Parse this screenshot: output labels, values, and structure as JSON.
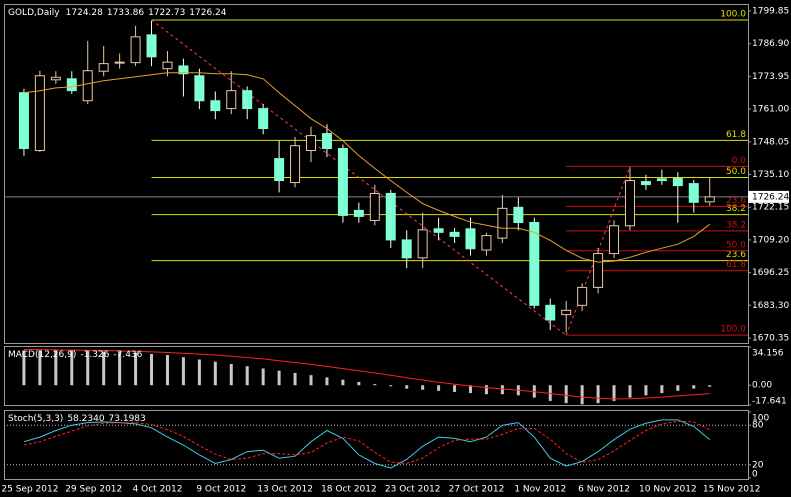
{
  "chart_data": [
    {
      "type": "candlestick",
      "symbol": "GOLD,Daily",
      "x": [
        0,
        1,
        2,
        3,
        4,
        5,
        6,
        7,
        8,
        9,
        10,
        11,
        12,
        13,
        14,
        15,
        16,
        17,
        18,
        19,
        20,
        21,
        22,
        23,
        24,
        25,
        26,
        27,
        28,
        29,
        30,
        31,
        32,
        33,
        34,
        35,
        36,
        37,
        38,
        39,
        40,
        41,
        42,
        43
      ],
      "open": [
        1767.5,
        1744.6,
        1772.6,
        1773,
        1764.3,
        1776,
        1779.2,
        1779.4,
        1790.4,
        1777,
        1778.1,
        1774.2,
        1764.3,
        1761.2,
        1768.3,
        1761.2,
        1741.4,
        1731.9,
        1744.6,
        1751.3,
        1745.4,
        1720.9,
        1716.9,
        1727.6,
        1709.2,
        1702.1,
        1713.6,
        1712.2,
        1713.6,
        1705.2,
        1709.9,
        1722.1,
        1716.1,
        1683.3,
        1679.6,
        1683.3,
        1690.4,
        1703.8,
        1714.8,
        1732.3,
        1733.4,
        1733.5,
        1731.5,
        1724.28
      ],
      "high": [
        1769,
        1776.2,
        1776,
        1776,
        1788,
        1786,
        1783,
        1794,
        1796,
        1784,
        1781,
        1777,
        1768,
        1776,
        1770,
        1763,
        1748.5,
        1750,
        1754,
        1755,
        1747,
        1724,
        1731,
        1729,
        1713,
        1720,
        1718,
        1714,
        1718,
        1712,
        1727,
        1726,
        1718,
        1686,
        1685,
        1692,
        1706,
        1717,
        1738,
        1735,
        1737,
        1736,
        1733,
        1733.86
      ],
      "low": [
        1742.5,
        1744,
        1771,
        1767,
        1763,
        1774,
        1777,
        1778,
        1778,
        1774,
        1766,
        1761,
        1757,
        1759,
        1757,
        1751,
        1728,
        1730,
        1740,
        1742,
        1716,
        1716,
        1715,
        1706,
        1698,
        1698,
        1709,
        1708,
        1703,
        1703,
        1708,
        1713,
        1682,
        1673.5,
        1672.6,
        1681,
        1688,
        1702,
        1713,
        1729,
        1731,
        1716,
        1720,
        1722.73
      ],
      "close": [
        1745.4,
        1774.2,
        1773.6,
        1768.3,
        1776.2,
        1779,
        1779.6,
        1789.6,
        1781.7,
        1779.6,
        1775,
        1764.3,
        1760.4,
        1768.3,
        1761.2,
        1753.3,
        1732.7,
        1746.5,
        1750.5,
        1745.4,
        1718.9,
        1718.5,
        1727.6,
        1709.2,
        1702.1,
        1713.2,
        1712.2,
        1710.6,
        1705.7,
        1710.9,
        1721.7,
        1716.1,
        1683.3,
        1677.5,
        1681.3,
        1690.4,
        1703.8,
        1714.8,
        1732.7,
        1731.1,
        1732.7,
        1730.7,
        1724.1,
        1726.24
      ],
      "up_color": "#e8c8a8",
      "down_color": "#7fffd4",
      "ma": {
        "color": "#e8a030",
        "values": [
          1767.5,
          1768.3,
          1769.4,
          1769.8,
          1771.0,
          1772.2,
          1773.0,
          1773.8,
          1774.6,
          1775.4,
          1775.4,
          1775.4,
          1775.0,
          1775.0,
          1774.6,
          1773.0,
          1767.5,
          1762.3,
          1757.2,
          1753.3,
          1748.5,
          1742.6,
          1737.5,
          1732.7,
          1728.0,
          1723.6,
          1720.9,
          1718.5,
          1716.2,
          1715.0,
          1713.8,
          1713.8,
          1712.2,
          1709.0,
          1705.1,
          1701.9,
          1700.4,
          1700.8,
          1702.3,
          1704.3,
          1705.9,
          1707.5,
          1710.6,
          1715.4
        ]
      },
      "fibs": [
        {
          "line_color": "#ff4040",
          "level_color": "#e0e000",
          "from": [
            8,
            1796.3
          ],
          "to": [
            34,
            1671.5
          ],
          "levels": [
            {
              "label": "100.0",
              "price": 1796.3
            },
            {
              "label": "61.8",
              "price": 1748.6
            },
            {
              "label": "50.0",
              "price": 1733.9
            },
            {
              "label": "38.2",
              "price": 1719.2
            },
            {
              "label": "23.6",
              "price": 1701.0
            }
          ]
        },
        {
          "line_color": "#ff4040",
          "level_color": "#d01010",
          "from": [
            34,
            1671.5
          ],
          "to": [
            38,
            1738.3
          ],
          "levels": [
            {
              "label": "0.0",
              "price": 1738.3
            },
            {
              "label": "23.6",
              "price": 1722.5
            },
            {
              "label": "38.2",
              "price": 1712.8
            },
            {
              "label": "50.0",
              "price": 1704.9
            },
            {
              "label": "61.8",
              "price": 1697.0
            },
            {
              "label": "100.0",
              "price": 1671.5
            }
          ]
        }
      ],
      "price_line_color": "#808080",
      "xlim": [
        -1.25,
        45.4
      ],
      "xticks": [
        {
          "value": 0,
          "label": "25 Sep 2012"
        },
        {
          "value": 4,
          "label": "29 Sep 2012"
        },
        {
          "value": 8,
          "label": "4 Oct 2012"
        },
        {
          "value": 12,
          "label": "9 Oct 2012"
        },
        {
          "value": 16,
          "label": "13 Oct 2012"
        },
        {
          "value": 20,
          "label": "18 Oct 2012"
        },
        {
          "value": 24,
          "label": "23 Oct 2012"
        },
        {
          "value": 28,
          "label": "27 Oct 2012"
        },
        {
          "value": 32,
          "label": "1 Nov 2012"
        },
        {
          "value": 36,
          "label": "6 Nov 2012"
        },
        {
          "value": 40,
          "label": "10 Nov 2012"
        },
        {
          "value": 44,
          "label": "15 Nov 2012"
        }
      ],
      "ylim": [
        1668.38,
        1802.22
      ],
      "yticks": [
        1799.85,
        {
          "value": 1786.9,
          "label": "1786.90"
        },
        1773.95,
        {
          "value": 1761,
          "label": "1761.00"
        },
        1748.05,
        {
          "value": 1735.1,
          "label": "1735.10"
        },
        1722.15,
        {
          "value": 1709.2,
          "label": "1709.20"
        },
        1696.25,
        {
          "value": 1683.3,
          "label": "1683.30"
        },
        1670.35
      ]
    },
    {
      "type": "macd",
      "title": "MACD(12,26,9)",
      "histogram": {
        "color": "#c8c8c8",
        "values": [
          31,
          31,
          31,
          31,
          31,
          30,
          30,
          29,
          28,
          27,
          25,
          23,
          21,
          19,
          17,
          15,
          13,
          11,
          9,
          7,
          5,
          3,
          1,
          -1,
          -3,
          -4,
          -5,
          -6,
          -7,
          -8,
          -8,
          -9,
          -11,
          -14,
          -16,
          -17,
          -16,
          -14,
          -11,
          -9,
          -7,
          -5,
          -3,
          -1.326
        ]
      },
      "signal": {
        "color": "#ff2020",
        "values": [
          32,
          31.8,
          31.6,
          31.4,
          31.2,
          31,
          30.6,
          30.2,
          29.8,
          29.2,
          28.6,
          27.8,
          27,
          25.9,
          24.8,
          23.5,
          21.9,
          20.3,
          18.6,
          16.8,
          14.9,
          12.9,
          10.9,
          8.9,
          6.7,
          4.6,
          2.7,
          0.9,
          -0.7,
          -2.1,
          -3.3,
          -4.5,
          -5.8,
          -7.4,
          -9.1,
          -10.6,
          -11.7,
          -12.2,
          -12.0,
          -11.4,
          -10.6,
          -9.5,
          -8.4,
          -7.436
        ]
      },
      "ylim": [
        -17.641,
        34.156
      ],
      "yticks": [
        34.156,
        {
          "value": 0,
          "label": "0.00"
        },
        -17.641
      ]
    },
    {
      "type": "stochastic",
      "title": "Stoch(5,3,3)",
      "series": [
        {
          "color": "#40c8e8",
          "dash": false,
          "last_label": "58.2340",
          "values": [
            55,
            62,
            72,
            80,
            84,
            85,
            84,
            82,
            76,
            62,
            50,
            35,
            22,
            28,
            40,
            42,
            30,
            33,
            55,
            72,
            60,
            35,
            22,
            15,
            28,
            48,
            62,
            60,
            55,
            62,
            80,
            84,
            62,
            30,
            18,
            25,
            40,
            58,
            74,
            83,
            88,
            88,
            78,
            58.234
          ]
        },
        {
          "color": "#ff2020",
          "dash": true,
          "last_label": "73.1983",
          "values": [
            50,
            55,
            63,
            71,
            79,
            83,
            84,
            84,
            81,
            73,
            63,
            49,
            36,
            28,
            30,
            37,
            37,
            35,
            39,
            53,
            62,
            56,
            39,
            24,
            22,
            30,
            46,
            57,
            59,
            59,
            66,
            75,
            75,
            59,
            37,
            24,
            28,
            41,
            57,
            72,
            82,
            86,
            85,
            73.1983
          ]
        }
      ],
      "levels": [
        80,
        20
      ],
      "ylim": [
        0,
        100
      ],
      "yticks": [
        100,
        80,
        20,
        0
      ]
    }
  ]
}
